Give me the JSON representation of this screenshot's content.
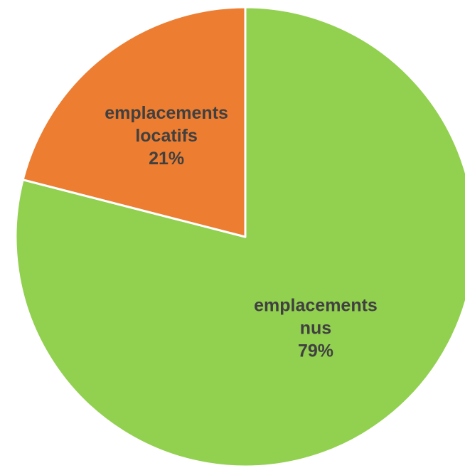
{
  "chart_data": {
    "type": "pie",
    "title": "",
    "start_angle_deg": 0,
    "direction": "clockwise",
    "legend": "none",
    "slices": [
      {
        "label_lines": [
          "emplacements",
          "nus"
        ],
        "percent_label": "79%",
        "value": 79,
        "color": "#92D050"
      },
      {
        "label_lines": [
          "emplacements",
          "locatifs"
        ],
        "percent_label": "21%",
        "value": 21,
        "color": "#ED7D31"
      }
    ]
  }
}
